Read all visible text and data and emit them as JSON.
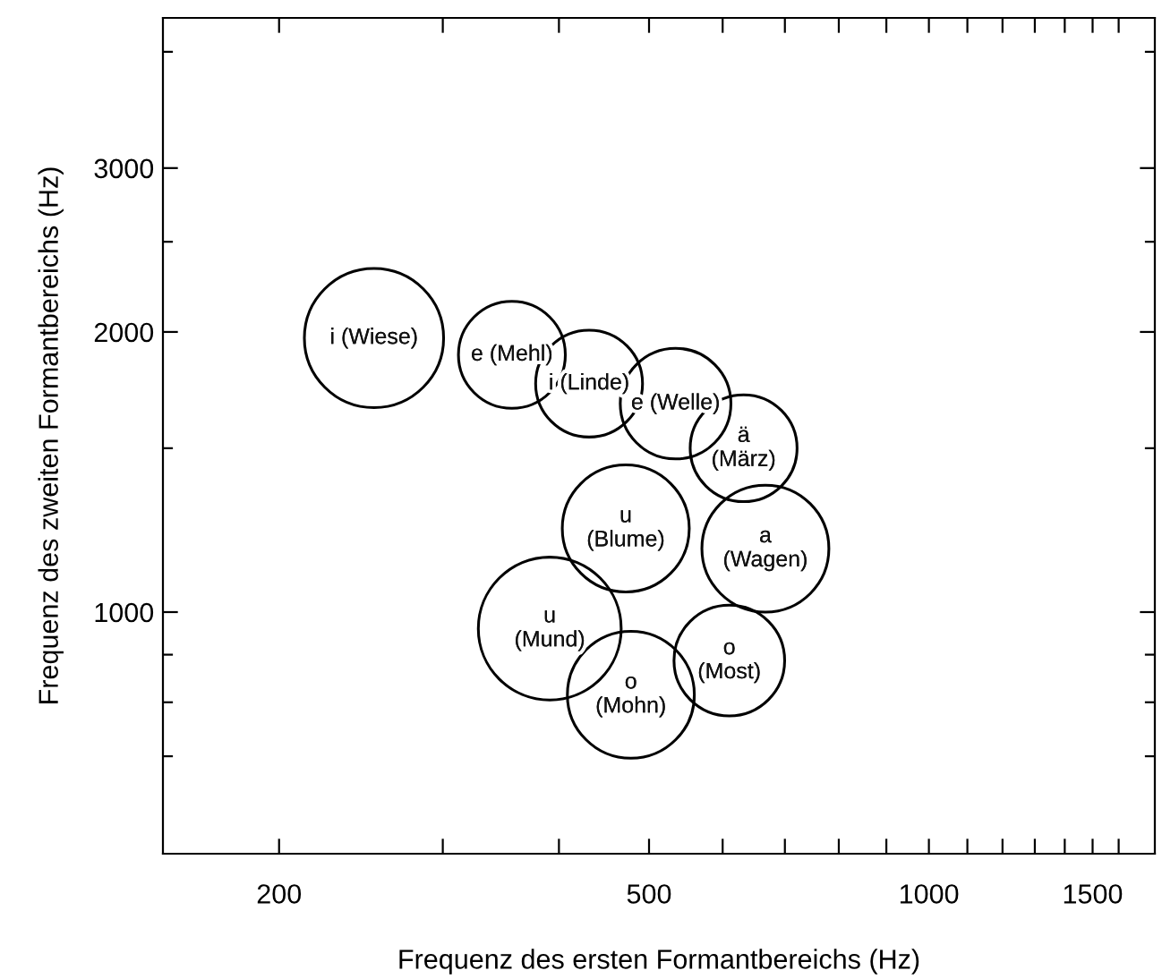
{
  "chart_data": {
    "type": "bubble",
    "xlabel": "Frequenz des ersten Formantbereichs (Hz)",
    "ylabel": "Frequenz des zweiten Formantbereichs (Hz)",
    "log": "xy",
    "xlim": [
      150,
      1750
    ],
    "ylim": [
      550,
      4350
    ],
    "xticks": [
      200,
      {
        "value": 300,
        "label": null
      },
      {
        "value": 400,
        "label": null
      },
      500,
      {
        "value": 600,
        "label": null
      },
      {
        "value": 700,
        "label": null
      },
      {
        "value": 800,
        "label": null
      },
      {
        "value": 900,
        "label": null
      },
      1000,
      {
        "value": 1100,
        "label": null
      },
      {
        "value": 1200,
        "label": null
      },
      {
        "value": 1300,
        "label": null
      },
      {
        "value": 1400,
        "label": null
      },
      1500,
      {
        "value": 1600,
        "label": null
      }
    ],
    "yticks": [
      {
        "value": 700,
        "label": null
      },
      {
        "value": 800,
        "label": null
      },
      {
        "value": 900,
        "label": null
      },
      1000,
      {
        "value": 1500,
        "label": null
      },
      2000,
      {
        "value": 2500,
        "label": null
      },
      3000,
      {
        "value": 4000,
        "label": null
      }
    ],
    "grid": false,
    "legend": false,
    "relative": false,
    "series": [
      {
        "color": "#000000",
        "x": [
          253,
          356,
          431,
          534,
          632,
          472,
          667,
          391,
          478,
          610
        ],
        "values": [
          1970,
          1890,
          1760,
          1675,
          1500,
          1230,
          1170,
          960,
          815,
          887
        ],
        "sizes": [
          0.95,
          0.56,
          0.56,
          0.6,
          0.56,
          0.79,
          0.79,
          1,
          0.79,
          0.6
        ],
        "value_labels": [
          "i (Wiese)",
          "e (Mehl)",
          "i (Linde)",
          "e (Welle)",
          "ä\n(März)",
          "u\n(Blume)",
          "a\n(Wagen)",
          "u\n(Mund)",
          "o\n(Mohn)",
          "o\n(Most)"
        ]
      }
    ]
  }
}
